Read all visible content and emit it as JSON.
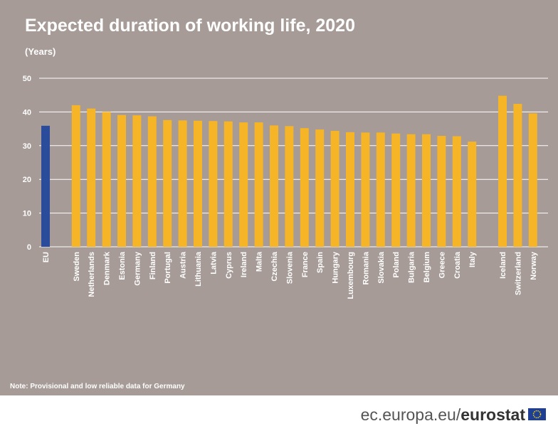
{
  "chart_data": {
    "type": "bar",
    "title": "Expected duration of working life, 2020",
    "subtitle": "(Years)",
    "categories": [
      "EU",
      "Sweden",
      "Netherlands",
      "Denmark",
      "Estonia",
      "Germany",
      "Finland",
      "Portugal",
      "Austria",
      "Lithuania",
      "Latvia",
      "Cyprus",
      "Ireland",
      "Malta",
      "Czechia",
      "Slovenia",
      "France",
      "Spain",
      "Hungary",
      "Luxembourg",
      "Romania",
      "Slovakia",
      "Poland",
      "Bulgaria",
      "Belgium",
      "Greece",
      "Croatia",
      "Italy",
      "Iceland",
      "Switzerland",
      "Norway"
    ],
    "values": [
      35.9,
      42.0,
      41.0,
      40.0,
      39.1,
      39.0,
      38.7,
      37.6,
      37.5,
      37.4,
      37.3,
      37.2,
      36.9,
      36.9,
      36.0,
      35.8,
      35.2,
      34.8,
      34.4,
      34.0,
      33.9,
      33.9,
      33.6,
      33.4,
      33.4,
      32.9,
      32.8,
      31.2,
      44.8,
      42.4,
      39.6
    ],
    "colors": [
      "#2b4c9b",
      "#f6b427",
      "#f6b427",
      "#f6b427",
      "#f6b427",
      "#f6b427",
      "#f6b427",
      "#f6b427",
      "#f6b427",
      "#f6b427",
      "#f6b427",
      "#f6b427",
      "#f6b427",
      "#f6b427",
      "#f6b427",
      "#f6b427",
      "#f6b427",
      "#f6b427",
      "#f6b427",
      "#f6b427",
      "#f6b427",
      "#f6b427",
      "#f6b427",
      "#f6b427",
      "#f6b427",
      "#f6b427",
      "#f6b427",
      "#f6b427",
      "#f6b427",
      "#f6b427",
      "#f6b427"
    ],
    "ylim": [
      0,
      50
    ],
    "yticks": [
      0,
      10,
      20,
      30,
      40,
      50
    ],
    "grid": true,
    "note": "Note: Provisional and low reliable data for Germany"
  },
  "footer": {
    "domain": "ec.europa.eu/",
    "brand": "eurostat"
  }
}
